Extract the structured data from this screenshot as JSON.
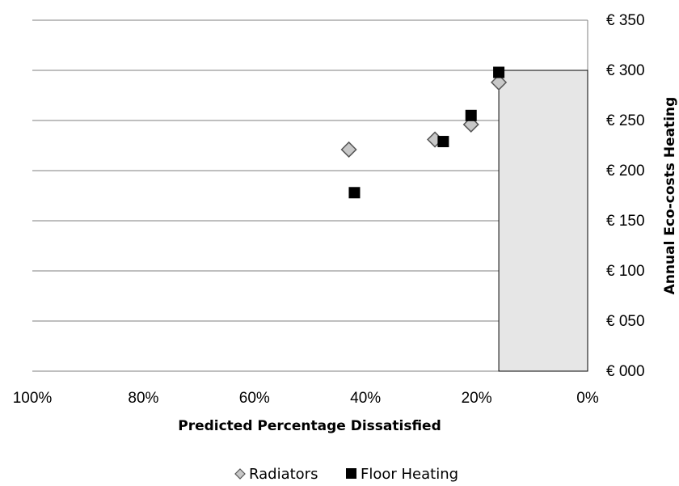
{
  "chart_data": {
    "type": "scatter",
    "xlabel": "Predicted Percentage Dissatisfied",
    "ylabel": "Annual Eco-costs Heating",
    "xlim": [
      100,
      0
    ],
    "ylim": [
      0,
      350
    ],
    "x_ticks": [
      100,
      80,
      60,
      40,
      20,
      0
    ],
    "x_tick_labels": [
      "100%",
      "80%",
      "60%",
      "40%",
      "20%",
      "0%"
    ],
    "y_ticks": [
      0,
      50,
      100,
      150,
      200,
      250,
      300,
      350
    ],
    "y_tick_labels": [
      "€ 000",
      "€ 050",
      "€ 100",
      "€ 150",
      "€ 200",
      "€ 250",
      "€ 300",
      "€ 350"
    ],
    "grid": "horizontal",
    "legend_position": "bottom-center",
    "shaded_region": {
      "x": [
        16,
        0
      ],
      "y": [
        0,
        300
      ],
      "color": "#e6e6e6"
    },
    "series": [
      {
        "name": "Radiators",
        "marker": "diamond",
        "color": "#c8c8c8",
        "points": [
          [
            43,
            221
          ],
          [
            27.5,
            231
          ],
          [
            21,
            246
          ],
          [
            16,
            288
          ]
        ]
      },
      {
        "name": "Floor Heating",
        "marker": "square",
        "color": "#000000",
        "points": [
          [
            42,
            178
          ],
          [
            26,
            229
          ],
          [
            21,
            255
          ],
          [
            16,
            298
          ]
        ]
      }
    ]
  }
}
